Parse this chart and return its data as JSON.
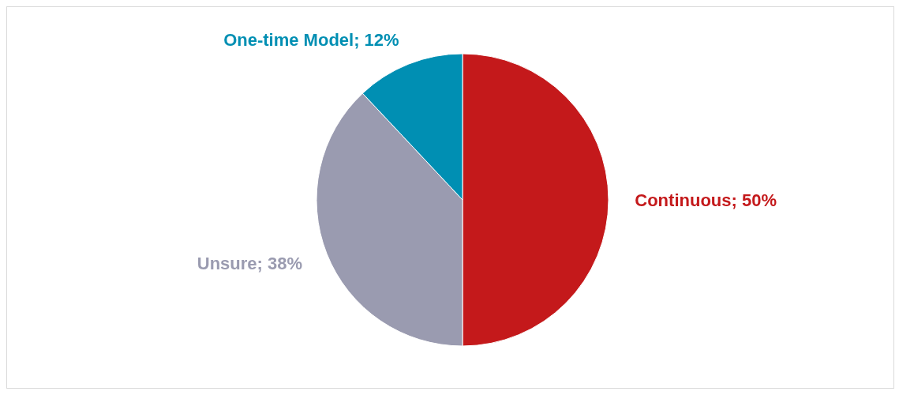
{
  "chart_data": {
    "type": "pie",
    "categories": [
      "Continuous",
      "Unsure",
      "One-time Model"
    ],
    "values": [
      50,
      38,
      12
    ],
    "colors": [
      "#c4191b",
      "#9a9bb0",
      "#008fb3"
    ],
    "value_labels": [
      "50%",
      "38%",
      "12%"
    ]
  }
}
